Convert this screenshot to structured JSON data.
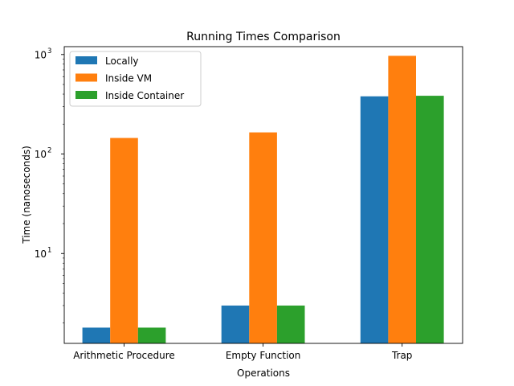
{
  "chart_data": {
    "type": "bar",
    "title": "Running Times Comparison",
    "xlabel": "Operations",
    "ylabel": "Time (nanoseconds)",
    "yscale": "log",
    "ylim": [
      1.25,
      1200
    ],
    "yticks": [
      10,
      100,
      1000
    ],
    "ytick_labels": [
      {
        "base": "10",
        "exp": "1"
      },
      {
        "base": "10",
        "exp": "2"
      },
      {
        "base": "10",
        "exp": "3"
      }
    ],
    "categories": [
      "Arithmetic Procedure",
      "Empty Function",
      "Trap"
    ],
    "series": [
      {
        "name": "Locally",
        "color": "#1f77b4",
        "values": [
          1.8,
          3.0,
          380
        ]
      },
      {
        "name": "Inside VM",
        "color": "#ff7f0e",
        "values": [
          145,
          165,
          970
        ]
      },
      {
        "name": "Inside Container",
        "color": "#2ca02c",
        "values": [
          1.8,
          3.0,
          385
        ]
      }
    ],
    "legend_position": "top-left",
    "grid": false
  }
}
